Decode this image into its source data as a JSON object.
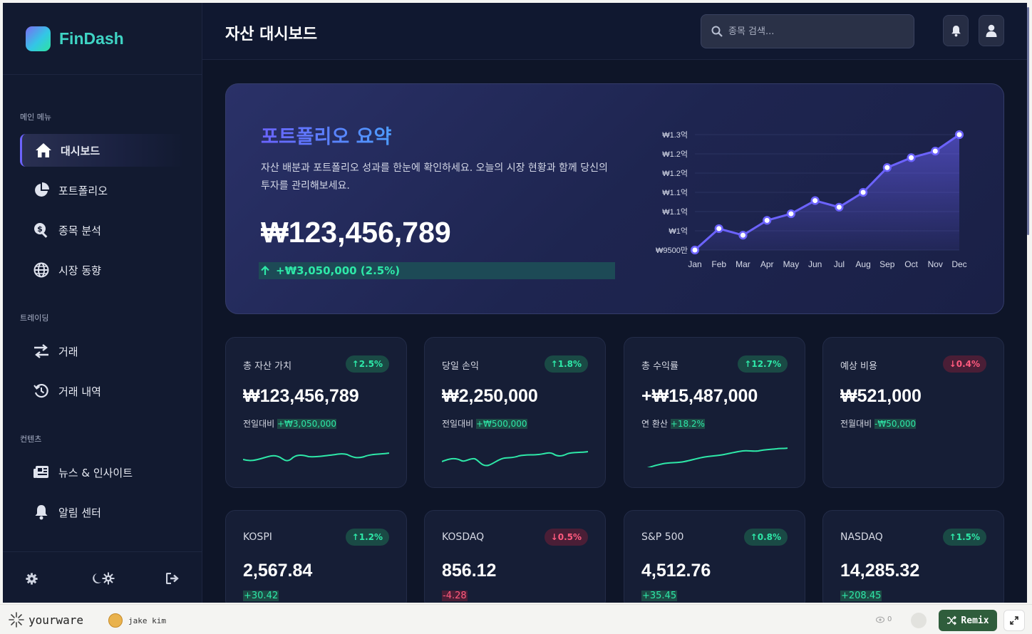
{
  "app": {
    "name": "FinDash"
  },
  "sidebar": {
    "sections": [
      {
        "title": "메인 메뉴"
      },
      {
        "title": "트레이딩"
      },
      {
        "title": "컨텐츠"
      }
    ],
    "items": [
      {
        "label": "대시보드",
        "icon": "home-icon",
        "active": true
      },
      {
        "label": "포트폴리오",
        "icon": "pie-chart-icon"
      },
      {
        "label": "종목 분석",
        "icon": "search-dollar-icon"
      },
      {
        "label": "시장 동향",
        "icon": "globe-icon"
      },
      {
        "label": "거래",
        "icon": "exchange-icon"
      },
      {
        "label": "거래 내역",
        "icon": "history-icon"
      },
      {
        "label": "뉴스 & 인사이트",
        "icon": "newspaper-icon"
      },
      {
        "label": "알림 센터",
        "icon": "bell-icon"
      }
    ]
  },
  "header": {
    "title": "자산 대시보드",
    "search_placeholder": "종목 검색..."
  },
  "hero": {
    "title": "포트폴리오 요약",
    "description": "자산 배분과 포트폴리오 성과를 한눈에 확인하세요. 오늘의 시장 현황과 함께 당신의 투자를 관리해보세요.",
    "value": "₩123,456,789",
    "change": "+₩3,050,000 (2.5%)"
  },
  "chart_data": {
    "type": "area",
    "categories": [
      "Jan",
      "Feb",
      "Mar",
      "Apr",
      "May",
      "Jun",
      "Jul",
      "Aug",
      "Sep",
      "Oct",
      "Nov",
      "Dec"
    ],
    "values": [
      95000000,
      101500000,
      99500000,
      104000000,
      106000000,
      110000000,
      108000000,
      112500000,
      120000000,
      123000000,
      125000000,
      130000000
    ],
    "ytick_labels": [
      "₩9500만",
      "₩1억",
      "₩1.1억",
      "₩1.1억",
      "₩1.2억",
      "₩1.2억",
      "₩1.3억"
    ],
    "ylim": [
      95000000,
      130000000
    ],
    "line_color": "#6c63ff",
    "grid": true
  },
  "stats": [
    {
      "label": "총 자산 가치",
      "badge": "2.5%",
      "dir": "up",
      "value": "₩123,456,789",
      "sub_prefix": "전일대비",
      "sub_value": "+₩3,050,000"
    },
    {
      "label": "당일 손익",
      "badge": "1.8%",
      "dir": "up",
      "value": "₩2,250,000",
      "sub_prefix": "전일대비",
      "sub_value": "+₩500,000"
    },
    {
      "label": "총 수익률",
      "badge": "12.7%",
      "dir": "up",
      "value": "+₩15,487,000",
      "sub_prefix": "연 환산",
      "sub_value": "+18.2%"
    },
    {
      "label": "예상 비용",
      "badge": "0.4%",
      "dir": "down",
      "value": "₩521,000",
      "sub_prefix": "전월대비",
      "sub_value": "-₩50,000"
    }
  ],
  "indices": [
    {
      "label": "KOSPI",
      "badge": "1.2%",
      "dir": "up",
      "value": "2,567.84",
      "change": "+30.42"
    },
    {
      "label": "KOSDAQ",
      "badge": "0.5%",
      "dir": "down",
      "value": "856.12",
      "change": "-4.28"
    },
    {
      "label": "S&P 500",
      "badge": "0.8%",
      "dir": "up",
      "value": "4,512.76",
      "change": "+35.45"
    },
    {
      "label": "NASDAQ",
      "badge": "1.5%",
      "dir": "up",
      "value": "14,285.32",
      "change": "+208.45"
    }
  ],
  "colors": {
    "accent": "#6c63ff",
    "positive": "#2ee8a8",
    "negative": "#ff5a7e",
    "background": "#0e1528"
  },
  "footer": {
    "brand": "yourware",
    "user": "jake kim",
    "views": "0",
    "remix_label": "Remix"
  }
}
